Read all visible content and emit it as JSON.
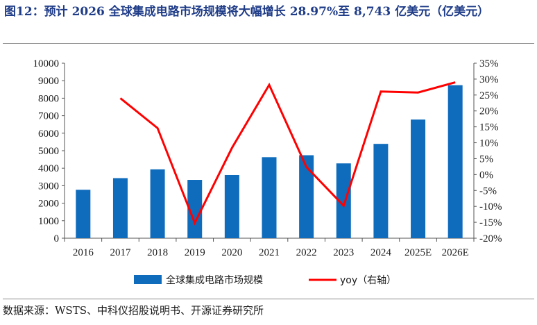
{
  "title": "图12：预计 2026 全球集成电路市场规模将大幅增长 28.97%至 8,743 亿美元（亿美元）",
  "source": "数据来源：WSTS、中科仪招股说明书、开源证券研究所",
  "colors": {
    "bar": "#0f6cbd",
    "line": "#ff0000",
    "title": "#1f3c88"
  },
  "chart_data": {
    "type": "bar",
    "categories": [
      "2016",
      "2017",
      "2018",
      "2019",
      "2020",
      "2021",
      "2022",
      "2023",
      "2024",
      "2025E",
      "2026E"
    ],
    "series": [
      {
        "name": "全球集成电路市场规模",
        "type": "bar",
        "axis": "left",
        "values": [
          2767,
          3432,
          3933,
          3333,
          3612,
          4630,
          4741,
          4275,
          5390,
          6779,
          8743
        ]
      },
      {
        "name": "yoy（右轴）",
        "type": "line",
        "axis": "right",
        "values": [
          null,
          24.0,
          14.6,
          -15.2,
          8.4,
          28.2,
          2.4,
          -9.8,
          26.1,
          25.8,
          28.97
        ]
      }
    ],
    "left_axis": {
      "min": 0,
      "max": 10000,
      "step": 1000,
      "ticks": [
        "0",
        "1000",
        "2000",
        "3000",
        "4000",
        "5000",
        "6000",
        "7000",
        "8000",
        "9000",
        "10000"
      ]
    },
    "right_axis": {
      "min": -20,
      "max": 35,
      "step": 5,
      "ticks": [
        "-20%",
        "-15%",
        "-10%",
        "-5%",
        "0%",
        "5%",
        "10%",
        "15%",
        "20%",
        "25%",
        "30%",
        "35%"
      ]
    },
    "legend_position": "bottom",
    "grid": false
  }
}
